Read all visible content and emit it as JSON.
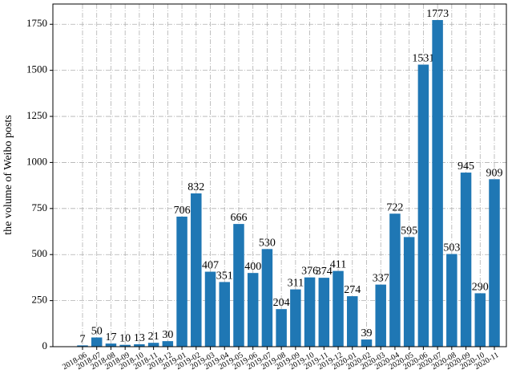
{
  "chart_data": {
    "type": "bar",
    "ylabel": "the volume of Weibo posts",
    "categories": [
      "2018-06",
      "2018-07",
      "2018-08",
      "2018-09",
      "2018-10",
      "2018-11",
      "2018-12",
      "2019-01",
      "2019-02",
      "2019-03",
      "2019-04",
      "2019-05",
      "2019-06",
      "2019-07",
      "2019-08",
      "2019-09",
      "2019-10",
      "2019-11",
      "2019-12",
      "2020-01",
      "2020-02",
      "2020-03",
      "2020-04",
      "2020-05",
      "2020-06",
      "2020-07",
      "2020-08",
      "2020-09",
      "2020-10",
      "2020-11"
    ],
    "values": [
      7,
      50,
      17,
      10,
      13,
      21,
      30,
      706,
      832,
      407,
      351,
      666,
      400,
      530,
      204,
      311,
      376,
      374,
      411,
      274,
      39,
      337,
      722,
      595,
      1531,
      1773,
      503,
      945,
      290,
      909
    ],
    "color": "#1f77b4",
    "ylim": [
      0,
      1860
    ],
    "yticks": [
      0,
      250,
      500,
      750,
      1000,
      1250,
      1500,
      1750
    ],
    "grid": true
  }
}
